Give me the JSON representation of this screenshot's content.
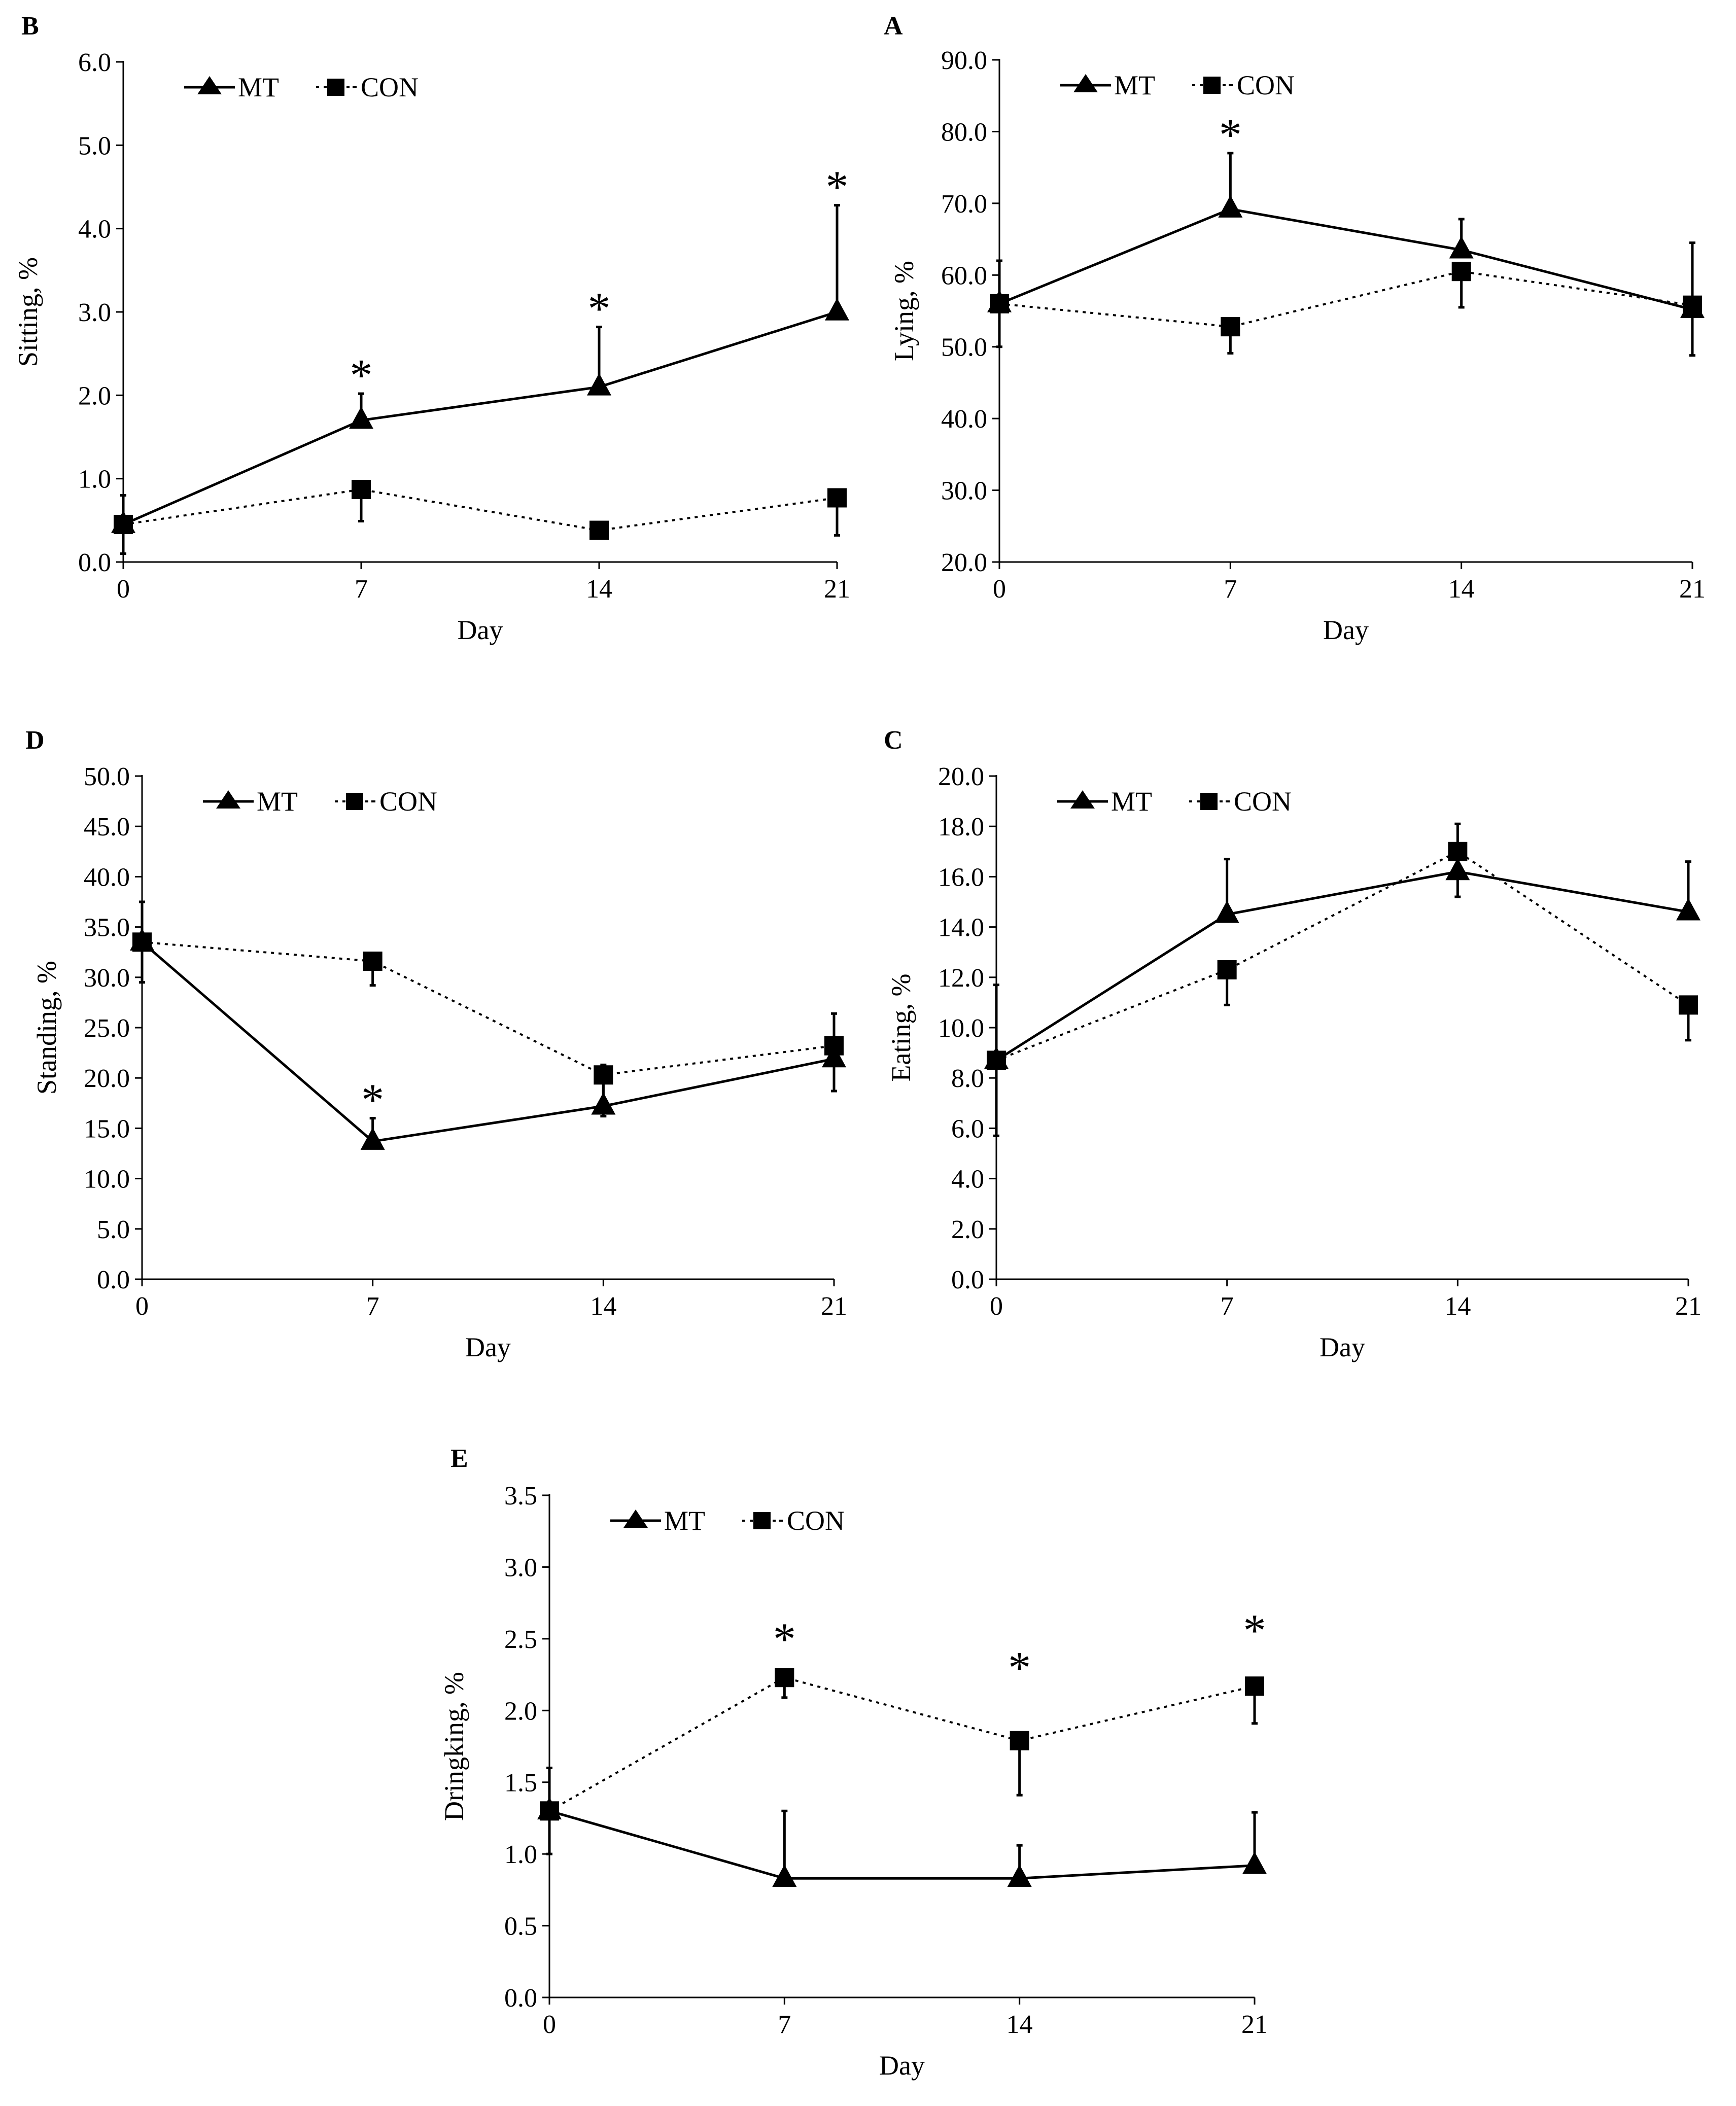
{
  "chart_data": [
    {
      "type": "line",
      "panel_label": "B",
      "xlabel": "Day",
      "ylabel": "Sitting, %",
      "x": [
        0,
        7,
        14,
        21
      ],
      "x_tick_labels": [
        "0",
        "7",
        "14",
        "21"
      ],
      "ylim": [
        0,
        6
      ],
      "y_tick_labels": [
        "0.0",
        "1.0",
        "2.0",
        "3.0",
        "4.0",
        "5.0",
        "6.0"
      ],
      "legend_position": "top-left",
      "significance_marker": "*",
      "series": [
        {
          "name": "MT",
          "marker": "triangle",
          "line_style": "solid",
          "values": [
            0.45,
            1.7,
            2.1,
            3.0
          ],
          "error": [
            0.35,
            0.32,
            0.72,
            1.28
          ],
          "significant": [
            false,
            true,
            true,
            true
          ]
        },
        {
          "name": "CON",
          "marker": "square",
          "line_style": "dotted",
          "values": [
            0.45,
            0.87,
            0.38,
            0.77
          ],
          "error": [
            0.35,
            0.38,
            0.08,
            0.45
          ],
          "significant": [
            false,
            false,
            false,
            false
          ]
        }
      ]
    },
    {
      "type": "line",
      "panel_label": "A",
      "xlabel": "Day",
      "ylabel": "Lying, %",
      "x": [
        0,
        7,
        14,
        21
      ],
      "x_tick_labels": [
        "0",
        "7",
        "14",
        "21"
      ],
      "ylim": [
        20,
        90
      ],
      "y_tick_labels": [
        "20.0",
        "30.0",
        "40.0",
        "50.0",
        "60.0",
        "70.0",
        "80.0",
        "90.0"
      ],
      "legend_position": "top-left",
      "significance_marker": "*",
      "series": [
        {
          "name": "MT",
          "marker": "triangle",
          "line_style": "solid",
          "values": [
            56.0,
            69.2,
            63.5,
            55.2
          ],
          "error": [
            6.0,
            7.8,
            4.3,
            9.3
          ],
          "significant": [
            false,
            true,
            false,
            false
          ]
        },
        {
          "name": "CON",
          "marker": "square",
          "line_style": "dotted",
          "values": [
            56.0,
            52.8,
            60.5,
            55.8
          ],
          "error": [
            6.0,
            3.7,
            5.0,
            7.0
          ],
          "significant": [
            false,
            false,
            false,
            false
          ]
        }
      ]
    },
    {
      "type": "line",
      "panel_label": "D",
      "xlabel": "Day",
      "ylabel": "Standing, %",
      "x": [
        0,
        7,
        14,
        21
      ],
      "x_tick_labels": [
        "0",
        "7",
        "14",
        "21"
      ],
      "ylim": [
        0,
        50
      ],
      "y_tick_labels": [
        "0.0",
        "5.0",
        "10.0",
        "15.0",
        "20.0",
        "25.0",
        "30.0",
        "35.0",
        "40.0",
        "45.0",
        "50.0"
      ],
      "legend_position": "top-left",
      "significance_marker": "*",
      "series": [
        {
          "name": "MT",
          "marker": "triangle",
          "line_style": "solid",
          "values": [
            33.5,
            13.7,
            17.2,
            21.9
          ],
          "error": [
            4.0,
            2.3,
            4.1,
            4.5
          ],
          "significant": [
            false,
            true,
            false,
            false
          ]
        },
        {
          "name": "CON",
          "marker": "square",
          "line_style": "dotted",
          "values": [
            33.5,
            31.6,
            20.3,
            23.2
          ],
          "error": [
            4.0,
            2.4,
            4.1,
            4.5
          ],
          "significant": [
            false,
            false,
            false,
            false
          ]
        }
      ]
    },
    {
      "type": "line",
      "panel_label": "C",
      "xlabel": "Day",
      "ylabel": "Eating, %",
      "x": [
        0,
        7,
        14,
        21
      ],
      "x_tick_labels": [
        "0",
        "7",
        "14",
        "21"
      ],
      "ylim": [
        0,
        20
      ],
      "y_tick_labels": [
        "0.0",
        "2.0",
        "4.0",
        "6.0",
        "8.0",
        "10.0",
        "12.0",
        "14.0",
        "16.0",
        "18.0",
        "20.0"
      ],
      "legend_position": "top-left",
      "significance_marker": "*",
      "series": [
        {
          "name": "MT",
          "marker": "triangle",
          "line_style": "solid",
          "values": [
            8.7,
            14.5,
            16.2,
            14.6
          ],
          "error": [
            3.0,
            2.2,
            1.9,
            2.0
          ],
          "significant": [
            false,
            false,
            false,
            false
          ]
        },
        {
          "name": "CON",
          "marker": "square",
          "line_style": "dotted",
          "values": [
            8.7,
            12.3,
            17.0,
            10.9
          ],
          "error": [
            3.0,
            1.4,
            1.8,
            1.4
          ],
          "significant": [
            false,
            false,
            false,
            false
          ]
        }
      ]
    },
    {
      "type": "line",
      "panel_label": "E",
      "xlabel": "Day",
      "ylabel": "Dringking, %",
      "x": [
        0,
        7,
        14,
        21
      ],
      "x_tick_labels": [
        "0",
        "7",
        "14",
        "21"
      ],
      "ylim": [
        0,
        3.5
      ],
      "y_tick_labels": [
        "0.0",
        "0.5",
        "1.0",
        "1.5",
        "2.0",
        "2.5",
        "3.0",
        "3.5"
      ],
      "legend_position": "top-left",
      "significance_marker": "*",
      "series": [
        {
          "name": "MT",
          "marker": "triangle",
          "line_style": "solid",
          "values": [
            1.3,
            0.83,
            0.83,
            0.92
          ],
          "error": [
            0.3,
            0.47,
            0.23,
            0.37
          ],
          "significant": [
            false,
            false,
            false,
            false
          ]
        },
        {
          "name": "CON",
          "marker": "square",
          "line_style": "dotted",
          "values": [
            1.3,
            2.23,
            1.79,
            2.17
          ],
          "error": [
            0.3,
            0.14,
            0.38,
            0.26
          ],
          "significant": [
            false,
            true,
            true,
            true
          ]
        }
      ]
    }
  ]
}
